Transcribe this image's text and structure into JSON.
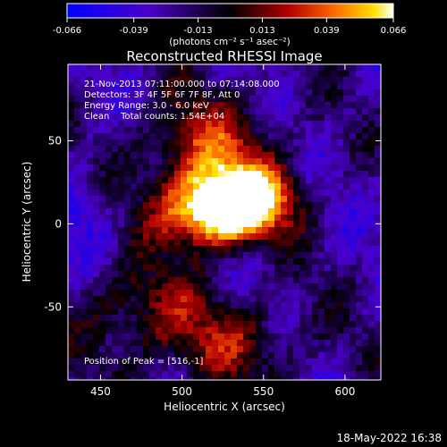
{
  "colorbar": {
    "ticks": [
      "-0.066",
      "-0.039",
      "-0.013",
      "0.013",
      "0.039",
      "0.066"
    ],
    "units": "(photons cm⁻² s⁻¹ asec⁻²)"
  },
  "chart_data": {
    "type": "heatmap",
    "title": "Reconstructed RHESSI Image",
    "xlabel": "Heliocentric X (arcsec)",
    "ylabel": "Heliocentric Y (arcsec)",
    "xlim": [
      430,
      622
    ],
    "ylim": [
      -94,
      96
    ],
    "xticks": [
      "450",
      "500",
      "550",
      "600"
    ],
    "yticks": [
      "50",
      "0",
      "-50"
    ],
    "color_range": [
      -0.066,
      0.066
    ],
    "colormap": [
      "#0000ff",
      "#4b00c8",
      "#000000",
      "#b40000",
      "#ff6a00",
      "#ffe000",
      "#ffffff"
    ],
    "annotations": [
      "21-Nov-2013 07:11:00.000 to 07:14:08.000",
      "Detectors: 3F 4F 5F 6F 7F 8F, Att 0",
      "Energy Range: 3.0 - 6.0 keV",
      "Clean    Total counts: 1.54E+04"
    ],
    "peak_label": "Position of Peak = [516,-1]",
    "peak_position": [
      516,
      -1
    ]
  },
  "footer": {
    "timestamp": "18-May-2022 16:38"
  }
}
